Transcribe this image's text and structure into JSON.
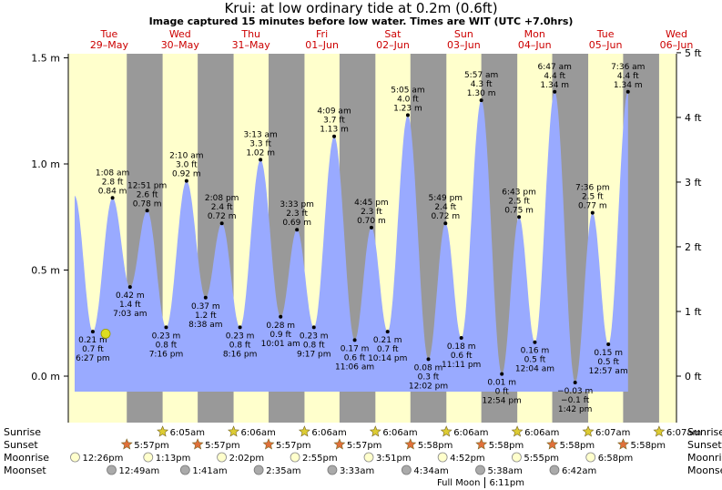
{
  "title": "Krui: at low  ordinary tide at 0.2m (0.6ft)",
  "subtitle": "Image captured 15 minutes before low water. Times are WIT (UTC +7.0hrs)",
  "colors": {
    "day": "#ffffcc",
    "night": "#999999",
    "water": "#99aaff",
    "day_label": "#cc0000",
    "sun": "#ddcc33",
    "sunset": "#e0703a",
    "moonrise": "#ffffcc",
    "moonset": "#aaaaaa",
    "now_marker": "#dddd22"
  },
  "days": [
    {
      "weekday": "Tue",
      "date": "29–May"
    },
    {
      "weekday": "Wed",
      "date": "30–May"
    },
    {
      "weekday": "Thu",
      "date": "31–May"
    },
    {
      "weekday": "Fri",
      "date": "01–Jun"
    },
    {
      "weekday": "Sat",
      "date": "02–Jun"
    },
    {
      "weekday": "Sun",
      "date": "03–Jun"
    },
    {
      "weekday": "Mon",
      "date": "04–Jun"
    },
    {
      "weekday": "Tue",
      "date": "05–Jun"
    },
    {
      "weekday": "Wed",
      "date": "06–Jun"
    }
  ],
  "chart_data": {
    "type": "area",
    "x_unit": "hours from 29-May 00:00 WIT",
    "x_range": [
      0,
      231.5
    ],
    "y_range_m": [
      -0.2,
      1.55
    ],
    "y_range_ft": [
      -0.656,
      5.085
    ],
    "left_axis": {
      "unit": "m",
      "ticks": [
        {
          "value": 0.0,
          "label": "0.0 m"
        },
        {
          "value": 0.5,
          "label": "0.5 m"
        },
        {
          "value": 1.0,
          "label": "1.0 m"
        },
        {
          "value": 1.5,
          "label": "1.5 m"
        }
      ]
    },
    "right_axis": {
      "unit": "ft",
      "ticks": [
        {
          "value": 0,
          "label": "0 ft"
        },
        {
          "value": 1,
          "label": "1 ft"
        },
        {
          "value": 2,
          "label": "2 ft"
        },
        {
          "value": 3,
          "label": "3 ft"
        },
        {
          "value": 4,
          "label": "4 ft"
        },
        {
          "value": 5,
          "label": "5 ft"
        }
      ]
    },
    "current": {
      "x": 10.8,
      "height_m": 0.2
    },
    "tides": [
      {
        "x": 0.3,
        "height_m": 0.85,
        "type": "high",
        "labels": []
      },
      {
        "x": 6.45,
        "height_m": 0.21,
        "type": "low",
        "labels": [
          "0.21 m",
          "0.7 ft",
          "6:27 pm"
        ]
      },
      {
        "x": 13.13,
        "height_m": 0.84,
        "type": "high",
        "labels": [
          "1:08 am",
          "2.8 ft",
          "0.84 m"
        ]
      },
      {
        "x": 19.05,
        "height_m": 0.42,
        "type": "low",
        "labels": [
          "0.42 m",
          "1.4 ft",
          "7:03 am"
        ]
      },
      {
        "x": 24.85,
        "height_m": 0.78,
        "type": "high",
        "labels": [
          "12:51 pm",
          "2.6 ft",
          "0.78 m"
        ]
      },
      {
        "x": 31.27,
        "height_m": 0.23,
        "type": "low",
        "labels": [
          "0.23 m",
          "0.8 ft",
          "7:16 pm"
        ]
      },
      {
        "x": 38.17,
        "height_m": 0.92,
        "type": "high",
        "labels": [
          "2:10 am",
          "3.0 ft",
          "0.92 m"
        ]
      },
      {
        "x": 44.63,
        "height_m": 0.37,
        "type": "low",
        "labels": [
          "0.37 m",
          "1.2 ft",
          "8:38 am"
        ]
      },
      {
        "x": 50.13,
        "height_m": 0.72,
        "type": "high",
        "labels": [
          "2:08 pm",
          "2.4 ft",
          "0.72 m"
        ]
      },
      {
        "x": 56.27,
        "height_m": 0.23,
        "type": "low",
        "labels": [
          "0.23 m",
          "0.8 ft",
          "8:16 pm"
        ]
      },
      {
        "x": 63.22,
        "height_m": 1.02,
        "type": "high",
        "labels": [
          "3:13 am",
          "3.3 ft",
          "1.02 m"
        ]
      },
      {
        "x": 70.02,
        "height_m": 0.28,
        "type": "low",
        "labels": [
          "0.28 m",
          "0.9 ft",
          "10:01 am"
        ]
      },
      {
        "x": 75.55,
        "height_m": 0.69,
        "type": "high",
        "labels": [
          "3:33 pm",
          "2.3 ft",
          "0.69 m"
        ]
      },
      {
        "x": 81.28,
        "height_m": 0.23,
        "type": "low",
        "labels": [
          "0.23 m",
          "0.8 ft",
          "9:17 pm"
        ]
      },
      {
        "x": 88.15,
        "height_m": 1.13,
        "type": "high",
        "labels": [
          "4:09 am",
          "3.7 ft",
          "1.13 m"
        ]
      },
      {
        "x": 95.1,
        "height_m": 0.17,
        "type": "low",
        "labels": [
          "0.17 m",
          "0.6 ft",
          "11:06 am"
        ]
      },
      {
        "x": 100.75,
        "height_m": 0.7,
        "type": "high",
        "labels": [
          "4:45 pm",
          "2.3 ft",
          "0.70 m"
        ]
      },
      {
        "x": 106.23,
        "height_m": 0.21,
        "type": "low",
        "labels": [
          "0.21 m",
          "0.7 ft",
          "10:14 pm"
        ]
      },
      {
        "x": 113.08,
        "height_m": 1.23,
        "type": "high",
        "labels": [
          "5:05 am",
          "4.0 ft",
          "1.23 m"
        ]
      },
      {
        "x": 120.03,
        "height_m": 0.08,
        "type": "low",
        "labels": [
          "0.08 m",
          "0.3 ft",
          "12:02 pm"
        ]
      },
      {
        "x": 125.82,
        "height_m": 0.72,
        "type": "high",
        "labels": [
          "5:49 pm",
          "2.4 ft",
          "0.72 m"
        ]
      },
      {
        "x": 131.18,
        "height_m": 0.18,
        "type": "low",
        "labels": [
          "0.18 m",
          "0.6 ft",
          "11:11 pm"
        ]
      },
      {
        "x": 137.95,
        "height_m": 1.3,
        "type": "high",
        "labels": [
          "5:57 am",
          "4.3 ft",
          "1.30 m"
        ]
      },
      {
        "x": 144.9,
        "height_m": 0.01,
        "type": "low",
        "labels": [
          "0.01 m",
          "0 ft",
          "12:54 pm"
        ]
      },
      {
        "x": 150.72,
        "height_m": 0.75,
        "type": "high",
        "labels": [
          "6:43 pm",
          "2.5 ft",
          "0.75 m"
        ]
      },
      {
        "x": 156.07,
        "height_m": 0.16,
        "type": "low",
        "labels": [
          "0.16 m",
          "0.5 ft",
          "12:04 am"
        ]
      },
      {
        "x": 162.78,
        "height_m": 1.34,
        "type": "high",
        "labels": [
          "6:47 am",
          "4.4 ft",
          "1.34 m"
        ]
      },
      {
        "x": 169.7,
        "height_m": -0.03,
        "type": "low",
        "labels": [
          "−0.03 m",
          "−0.1 ft",
          "1:42 pm"
        ]
      },
      {
        "x": 175.6,
        "height_m": 0.77,
        "type": "high",
        "labels": [
          "7:36 pm",
          "2.5 ft",
          "0.77 m"
        ]
      },
      {
        "x": 180.95,
        "height_m": 0.15,
        "type": "low",
        "labels": [
          "0.15 m",
          "0.5 ft",
          "12:57 am"
        ]
      },
      {
        "x": 187.6,
        "height_m": 1.34,
        "type": "high",
        "labels": [
          "7:36 am",
          "4.4 ft",
          "1.34 m"
        ]
      }
    ],
    "night_intervals": [
      [
        17.95,
        30.08
      ],
      [
        41.95,
        54.1
      ],
      [
        65.95,
        78.1
      ],
      [
        89.95,
        102.1
      ],
      [
        113.95,
        126.13
      ],
      [
        137.95,
        150.13
      ],
      [
        161.95,
        174.13
      ],
      [
        185.95,
        198.13
      ]
    ]
  },
  "events": {
    "row_labels": {
      "sunrise": "Sunrise",
      "sunset": "Sunset",
      "moonrise": "Moonrise",
      "moonset": "Moonset"
    },
    "sunrise": [
      {
        "x": 30.08,
        "label": "6:05am"
      },
      {
        "x": 54.1,
        "label": "6:06am"
      },
      {
        "x": 78.1,
        "label": "6:06am"
      },
      {
        "x": 102.1,
        "label": "6:06am"
      },
      {
        "x": 126.1,
        "label": "6:06am"
      },
      {
        "x": 150.1,
        "label": "6:06am"
      },
      {
        "x": 174.12,
        "label": "6:07am"
      },
      {
        "x": 198.12,
        "label": "6:07am"
      }
    ],
    "sunset": [
      {
        "x": 17.95,
        "label": "5:57pm"
      },
      {
        "x": 41.95,
        "label": "5:57pm"
      },
      {
        "x": 65.95,
        "label": "5:57pm"
      },
      {
        "x": 89.95,
        "label": "5:57pm"
      },
      {
        "x": 113.97,
        "label": "5:58pm"
      },
      {
        "x": 137.97,
        "label": "5:58pm"
      },
      {
        "x": 161.97,
        "label": "5:58pm"
      },
      {
        "x": 185.97,
        "label": "5:58pm"
      }
    ],
    "moonrise": [
      {
        "x": 0.45,
        "label": "12:26pm"
      },
      {
        "x": 25.2,
        "label": "1:13pm"
      },
      {
        "x": 50.1,
        "label": "2:02pm"
      },
      {
        "x": 74.9,
        "label": "2:55pm"
      },
      {
        "x": 99.85,
        "label": "3:51pm"
      },
      {
        "x": 124.85,
        "label": "4:52pm"
      },
      {
        "x": 149.9,
        "label": "5:55pm"
      },
      {
        "x": 174.95,
        "label": "6:58pm"
      }
    ],
    "moonset": [
      {
        "x": 12.8,
        "label": "12:49am"
      },
      {
        "x": 37.7,
        "label": "1:41am"
      },
      {
        "x": 62.6,
        "label": "2:35am"
      },
      {
        "x": 87.5,
        "label": "3:33am"
      },
      {
        "x": 112.6,
        "label": "4:34am"
      },
      {
        "x": 137.6,
        "label": "5:38am"
      },
      {
        "x": 162.7,
        "label": "6:42am"
      }
    ],
    "full_moon": {
      "x": 138.2,
      "label": "Full Moon",
      "time": "6:11pm"
    }
  }
}
